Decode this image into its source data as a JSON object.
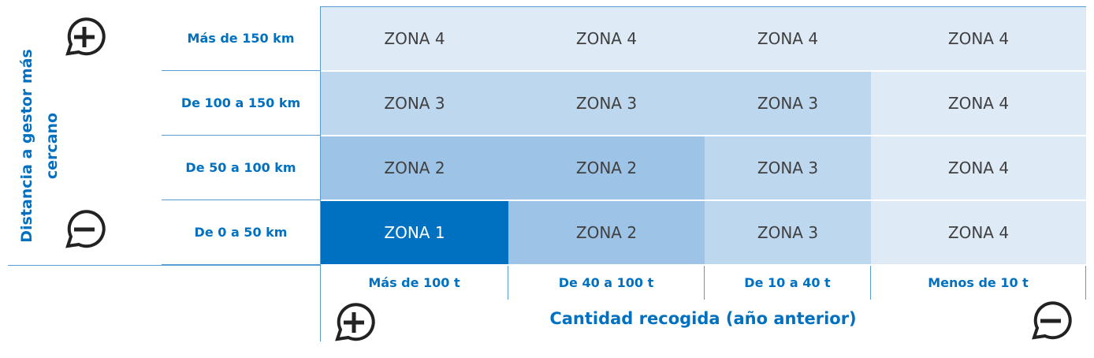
{
  "y_axis_label": "Distancia a gestor más cercano",
  "x_axis_label": "Cantidad recogida (año anterior)",
  "rows": [
    {
      "label": "Más de 150 km",
      "cells": [
        {
          "text": "ZONA 4",
          "color": "#deeaf6"
        },
        {
          "text": "ZONA 4",
          "color": "#deeaf6"
        },
        {
          "text": "ZONA 4",
          "color": "#deeaf6"
        },
        {
          "text": "ZONA 4",
          "color": "#deeaf6"
        }
      ]
    },
    {
      "label": "De 100 a 150 km",
      "cells": [
        {
          "text": "ZONA 3",
          "color": "#bdd7ee"
        },
        {
          "text": "ZONA 3",
          "color": "#bdd7ee"
        },
        {
          "text": "ZONA 3",
          "color": "#bdd7ee"
        },
        {
          "text": "ZONA 4",
          "color": "#deeaf6"
        }
      ]
    },
    {
      "label": "De 50 a 100 km",
      "cells": [
        {
          "text": "ZONA 2",
          "color": "#9dc3e6"
        },
        {
          "text": "ZONA 2",
          "color": "#9dc3e6"
        },
        {
          "text": "ZONA 3",
          "color": "#bdd7ee"
        },
        {
          "text": "ZONA 4",
          "color": "#deeaf6"
        }
      ]
    },
    {
      "label": "De 0 a 50 km",
      "cells": [
        {
          "text": "ZONA 1",
          "color": "#0070c0"
        },
        {
          "text": "ZONA 2",
          "color": "#9dc3e6"
        },
        {
          "text": "ZONA 3",
          "color": "#bdd7ee"
        },
        {
          "text": "ZONA 4",
          "color": "#deeaf6"
        }
      ]
    }
  ],
  "columns": [
    "Más de 100 t",
    "De 40 a 100 t",
    "De 10 a 40 t",
    "Menos de 10 t"
  ]
}
